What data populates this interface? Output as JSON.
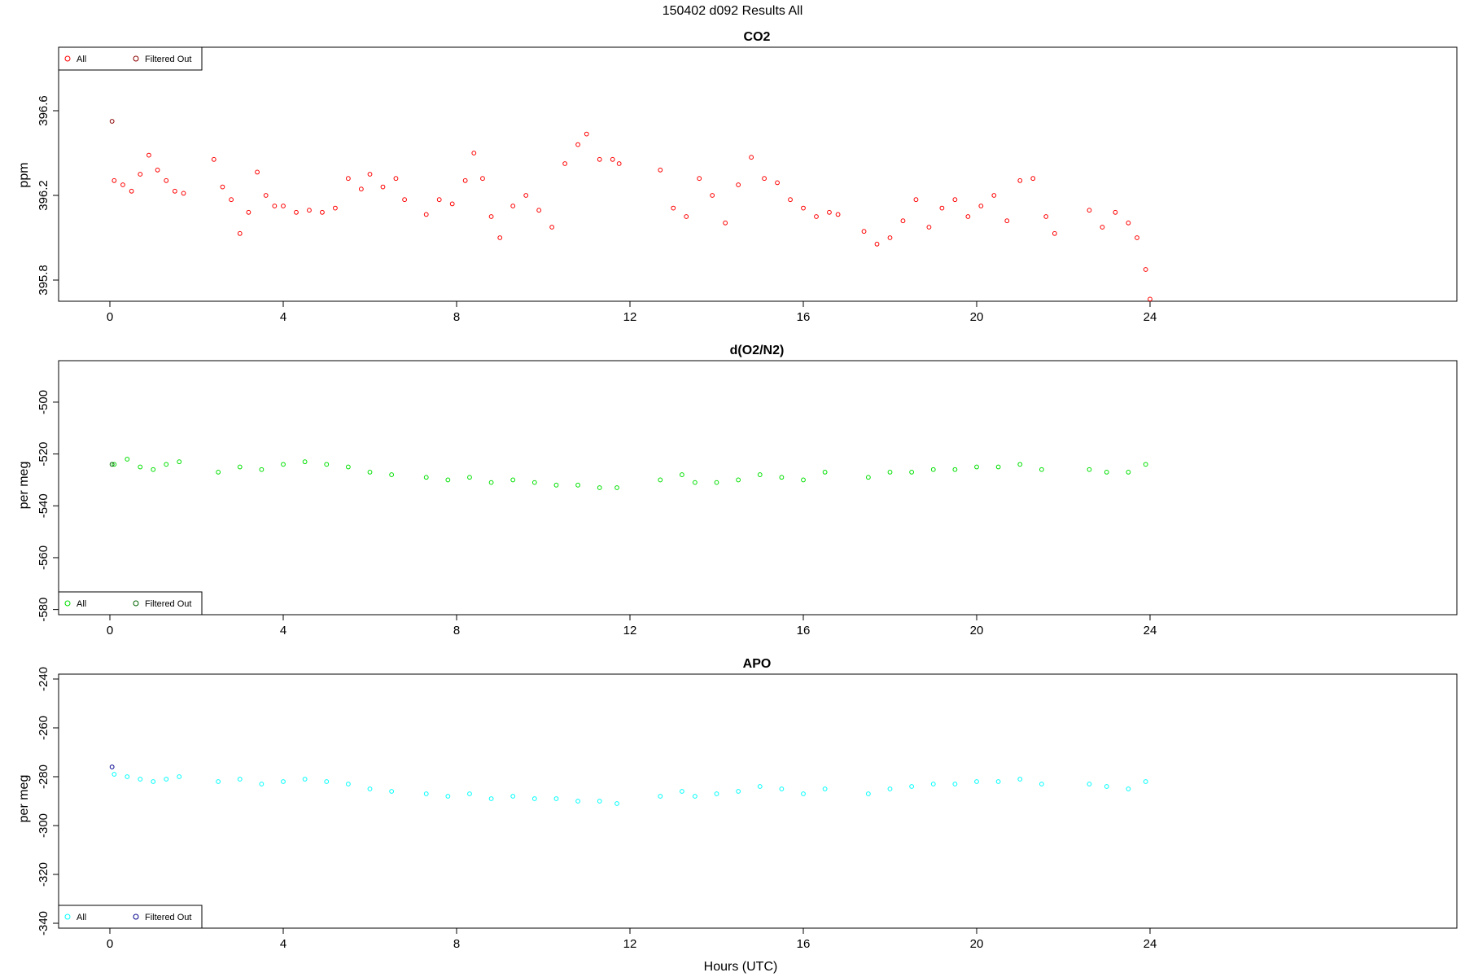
{
  "suptitle": "150402   d092   Results All",
  "xlabel": "Hours (UTC)",
  "colors": {
    "co2": "#ff0000",
    "o2": "#00e000",
    "apo": "#00ffff",
    "co2_filtered": "#8b0000",
    "o2_filtered": "#006400",
    "apo_filtered": "#00008b"
  },
  "chart_data": [
    {
      "type": "scatter",
      "title": "CO2",
      "ylabel": "ppm",
      "xlim": [
        0,
        24
      ],
      "xticks": [
        0,
        4,
        8,
        12,
        16,
        20,
        24
      ],
      "ylim": [
        395.7,
        396.9
      ],
      "yticks": [
        "395.8",
        "396.2",
        "396.6"
      ],
      "ytick_values": [
        395.8,
        396.2,
        396.6
      ],
      "legend": {
        "position": "top-left",
        "entries": [
          "All",
          "Filtered Out"
        ]
      },
      "series": [
        {
          "name": "All",
          "x": [
            0.1,
            0.3,
            0.5,
            0.7,
            0.9,
            1.1,
            1.3,
            1.5,
            1.7,
            2.4,
            2.6,
            2.8,
            3.0,
            3.2,
            3.4,
            3.6,
            3.8,
            4.0,
            4.3,
            4.6,
            4.9,
            5.2,
            5.5,
            5.8,
            6.0,
            6.3,
            6.6,
            6.8,
            7.3,
            7.6,
            7.9,
            8.2,
            8.4,
            8.6,
            8.8,
            9.0,
            9.3,
            9.6,
            9.9,
            10.2,
            10.5,
            10.8,
            11.0,
            11.3,
            11.6,
            11.75,
            12.7,
            13.0,
            13.3,
            13.6,
            13.9,
            14.2,
            14.5,
            14.8,
            15.1,
            15.4,
            15.7,
            16.0,
            16.3,
            16.6,
            16.8,
            17.4,
            17.7,
            18.0,
            18.3,
            18.6,
            18.9,
            19.2,
            19.5,
            19.8,
            20.1,
            20.4,
            20.7,
            21.0,
            21.3,
            21.6,
            21.8,
            22.6,
            22.9,
            23.2,
            23.5,
            23.7,
            23.9,
            24.0
          ],
          "y": [
            396.27,
            396.25,
            396.22,
            396.3,
            396.39,
            396.32,
            396.27,
            396.22,
            396.21,
            396.37,
            396.24,
            396.18,
            396.02,
            396.12,
            396.31,
            396.2,
            396.15,
            396.15,
            396.12,
            396.13,
            396.12,
            396.14,
            396.28,
            396.23,
            396.3,
            396.24,
            396.28,
            396.18,
            396.11,
            396.18,
            396.16,
            396.27,
            396.4,
            396.28,
            396.1,
            396.0,
            396.15,
            396.2,
            396.13,
            396.05,
            396.35,
            396.44,
            396.49,
            396.37,
            396.37,
            396.35,
            396.32,
            396.14,
            396.1,
            396.28,
            396.2,
            396.07,
            396.25,
            396.38,
            396.28,
            396.26,
            396.18,
            396.14,
            396.1,
            396.12,
            396.11,
            396.03,
            395.97,
            396.0,
            396.08,
            396.18,
            396.05,
            396.14,
            396.18,
            396.1,
            396.15,
            396.2,
            396.08,
            396.27,
            396.28,
            396.1,
            396.02,
            396.13,
            396.05,
            396.12,
            396.07,
            396.0,
            395.85,
            395.71
          ]
        },
        {
          "name": "Filtered Out",
          "x": [
            0.05
          ],
          "y": [
            396.55
          ]
        }
      ]
    },
    {
      "type": "scatter",
      "title": "d(O2/N2)",
      "ylabel": "per meg",
      "xlim": [
        0,
        24
      ],
      "xticks": [
        0,
        4,
        8,
        12,
        16,
        20,
        24
      ],
      "ylim": [
        -582,
        -484
      ],
      "yticks": [
        "-580",
        "-560",
        "-540",
        "-520",
        "-500"
      ],
      "ytick_values": [
        -580,
        -560,
        -540,
        -520,
        -500
      ],
      "legend": {
        "position": "bottom-left",
        "entries": [
          "All",
          "Filtered Out"
        ]
      },
      "series": [
        {
          "name": "All",
          "x": [
            0.1,
            0.4,
            0.7,
            1.0,
            1.3,
            1.6,
            2.5,
            3.0,
            3.5,
            4.0,
            4.5,
            5.0,
            5.5,
            6.0,
            6.5,
            7.3,
            7.8,
            8.3,
            8.8,
            9.3,
            9.8,
            10.3,
            10.8,
            11.3,
            11.7,
            12.7,
            13.2,
            13.5,
            14.0,
            14.5,
            15.0,
            15.5,
            16.0,
            16.5,
            17.5,
            18.0,
            18.5,
            19.0,
            19.5,
            20.0,
            20.5,
            21.0,
            21.5,
            22.6,
            23.0,
            23.5,
            23.9
          ],
          "y": [
            -524,
            -522,
            -525,
            -526,
            -524,
            -523,
            -527,
            -525,
            -526,
            -524,
            -523,
            -524,
            -525,
            -527,
            -528,
            -529,
            -530,
            -529,
            -531,
            -530,
            -531,
            -532,
            -532,
            -533,
            -533,
            -530,
            -528,
            -531,
            -531,
            -530,
            -528,
            -529,
            -530,
            -527,
            -529,
            -527,
            -527,
            -526,
            -526,
            -525,
            -525,
            -524,
            -526,
            -526,
            -527,
            -527,
            -524
          ]
        },
        {
          "name": "Filtered Out",
          "x": [
            0.05
          ],
          "y": [
            -524
          ]
        }
      ]
    },
    {
      "type": "scatter",
      "title": "APO",
      "ylabel": "per meg",
      "xlim": [
        0,
        24
      ],
      "xticks": [
        0,
        4,
        8,
        12,
        16,
        20,
        24
      ],
      "ylim": [
        -342,
        -238
      ],
      "yticks": [
        "-340",
        "-320",
        "-300",
        "-280",
        "-260",
        "-240"
      ],
      "ytick_values": [
        -340,
        -320,
        -300,
        -280,
        -260,
        -240
      ],
      "legend": {
        "position": "bottom-left",
        "entries": [
          "All",
          "Filtered Out"
        ]
      },
      "series": [
        {
          "name": "All",
          "x": [
            0.1,
            0.4,
            0.7,
            1.0,
            1.3,
            1.6,
            2.5,
            3.0,
            3.5,
            4.0,
            4.5,
            5.0,
            5.5,
            6.0,
            6.5,
            7.3,
            7.8,
            8.3,
            8.8,
            9.3,
            9.8,
            10.3,
            10.8,
            11.3,
            11.7,
            12.7,
            13.2,
            13.5,
            14.0,
            14.5,
            15.0,
            15.5,
            16.0,
            16.5,
            17.5,
            18.0,
            18.5,
            19.0,
            19.5,
            20.0,
            20.5,
            21.0,
            21.5,
            22.6,
            23.0,
            23.5,
            23.9
          ],
          "y": [
            -279,
            -280,
            -281,
            -282,
            -281,
            -280,
            -282,
            -281,
            -283,
            -282,
            -281,
            -282,
            -283,
            -285,
            -286,
            -287,
            -288,
            -287,
            -289,
            -288,
            -289,
            -289,
            -290,
            -290,
            -291,
            -288,
            -286,
            -288,
            -287,
            -286,
            -284,
            -285,
            -287,
            -285,
            -287,
            -285,
            -284,
            -283,
            -283,
            -282,
            -282,
            -281,
            -283,
            -283,
            -284,
            -285,
            -282
          ]
        },
        {
          "name": "Filtered Out",
          "x": [
            0.05
          ],
          "y": [
            -276
          ]
        }
      ]
    }
  ]
}
